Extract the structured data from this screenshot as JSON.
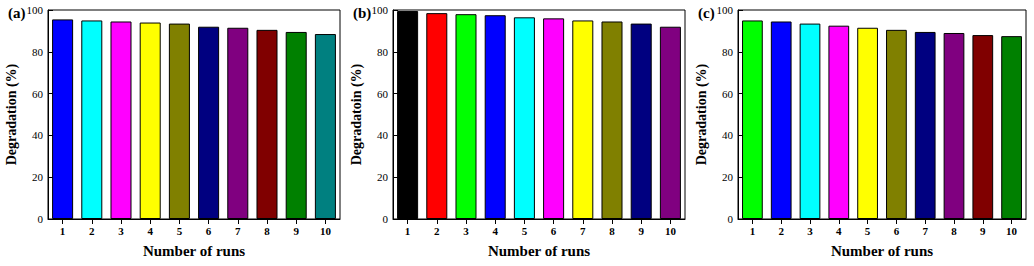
{
  "chart_data": [
    {
      "type": "bar",
      "title": "(a)",
      "xlabel": "Number of runs",
      "ylabel": "Degradation (%)",
      "categories": [
        "1",
        "2",
        "3",
        "4",
        "5",
        "6",
        "7",
        "8",
        "9",
        "10"
      ],
      "values": [
        95.5,
        95,
        94.5,
        94,
        93.5,
        92,
        91.5,
        90.5,
        89.5,
        88.5
      ],
      "colors": [
        "#0000FF",
        "#00FFFF",
        "#FF00FF",
        "#FFFF00",
        "#808000",
        "#000080",
        "#800080",
        "#800000",
        "#008000",
        "#008080"
      ],
      "ylim": [
        0,
        100
      ],
      "yticks": [
        0,
        20,
        40,
        60,
        80,
        100
      ],
      "grid": false
    },
    {
      "type": "bar",
      "title": "(b)",
      "xlabel": "Number of runs",
      "ylabel": "Degradatoin (%)",
      "categories": [
        "1",
        "2",
        "3",
        "4",
        "5",
        "6",
        "7",
        "8",
        "9",
        "10"
      ],
      "values": [
        99.5,
        98.5,
        98,
        97.5,
        96.5,
        96,
        95,
        94.5,
        93.5,
        92
      ],
      "colors": [
        "#000000",
        "#FF0000",
        "#00FF00",
        "#0000FF",
        "#00FFFF",
        "#FF00FF",
        "#FFFF00",
        "#808000",
        "#000080",
        "#800080"
      ],
      "ylim": [
        0,
        100
      ],
      "yticks": [
        0,
        20,
        40,
        60,
        80,
        100
      ],
      "grid": false
    },
    {
      "type": "bar",
      "title": "(c)",
      "xlabel": "Number of runs",
      "ylabel": "Degradation (%)",
      "categories": [
        "1",
        "2",
        "3",
        "4",
        "5",
        "6",
        "7",
        "8",
        "9",
        "10"
      ],
      "values": [
        95,
        94.5,
        93.5,
        92.5,
        91.5,
        90.5,
        89.5,
        89,
        88,
        87.5
      ],
      "colors": [
        "#00FF00",
        "#0000FF",
        "#00FFFF",
        "#FF00FF",
        "#FFFF00",
        "#808000",
        "#000080",
        "#800080",
        "#800000",
        "#008000"
      ],
      "ylim": [
        0,
        100
      ],
      "yticks": [
        0,
        20,
        40,
        60,
        80,
        100
      ],
      "grid": false
    }
  ]
}
